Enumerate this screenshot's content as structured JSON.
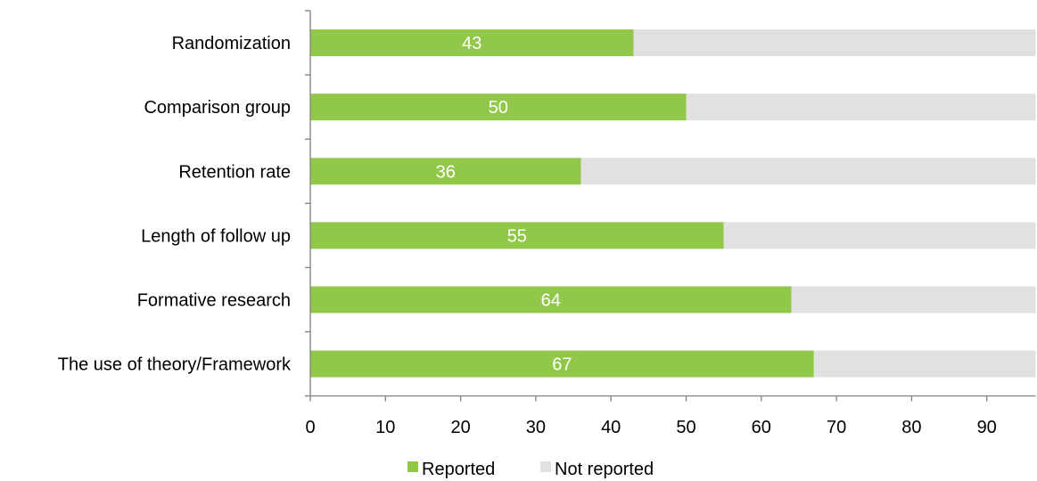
{
  "chart_data": {
    "type": "bar",
    "orientation": "horizontal",
    "stacked": true,
    "categories": [
      "Randomization",
      "Comparison group",
      "Retention rate",
      "Length of follow up",
      "Formative research",
      "The use of theory/Framework"
    ],
    "series": [
      {
        "name": "Reported",
        "values": [
          43,
          50,
          36,
          55,
          64,
          67
        ],
        "color": "#92c84a"
      },
      {
        "name": "Not reported",
        "values": [
          57,
          50,
          64,
          45,
          36,
          33
        ],
        "color": "#e1e1e1"
      }
    ],
    "data_labels": [
      "43",
      "50",
      "36",
      "55",
      "64",
      "67"
    ],
    "x_ticks": [
      "0",
      "10",
      "20",
      "30",
      "40",
      "50",
      "60",
      "70",
      "80",
      "90"
    ],
    "xlim": [
      0,
      96.5
    ],
    "title": "",
    "xlabel": "",
    "ylabel": "",
    "grid": false,
    "legend_position": "bottom-center"
  }
}
